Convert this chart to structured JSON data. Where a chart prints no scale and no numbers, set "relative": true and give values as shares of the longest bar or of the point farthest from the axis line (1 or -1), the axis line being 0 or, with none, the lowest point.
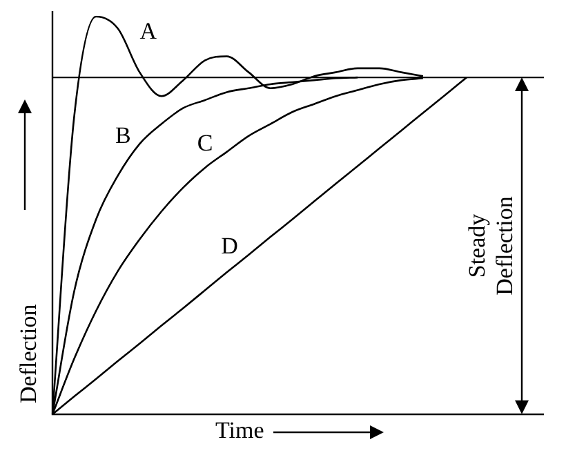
{
  "chart_data": {
    "type": "line",
    "relative": true,
    "xlabel": "Time",
    "ylabel": "Deflection",
    "categories": [
      null,
      null,
      null,
      null,
      null,
      null,
      null,
      null,
      null,
      null,
      null,
      null,
      null,
      null,
      null,
      null,
      null,
      null,
      null,
      null
    ],
    "series": [
      {
        "name": "A",
        "color": "#000000",
        "values": [
          0,
          0.75,
          1.0,
          0.97,
          0.86,
          0.8,
          0.84,
          0.89,
          0.9,
          0.86,
          0.82,
          0.83,
          0.85,
          0.86,
          0.87,
          0.87,
          0.86,
          0.85,
          null,
          null
        ]
      },
      {
        "name": "B",
        "color": "#000000",
        "values": [
          0,
          0.31,
          0.49,
          0.6,
          0.68,
          0.73,
          0.77,
          0.79,
          0.81,
          0.82,
          0.83,
          0.835,
          0.84,
          0.845,
          0.847,
          null,
          null,
          null,
          null,
          null
        ]
      },
      {
        "name": "C",
        "color": "#000000",
        "values": [
          0,
          0.14,
          0.26,
          0.36,
          0.44,
          0.51,
          0.57,
          0.62,
          0.66,
          0.7,
          0.73,
          0.76,
          0.78,
          0.8,
          0.815,
          0.83,
          0.84,
          0.845,
          null,
          null
        ]
      },
      {
        "name": "D",
        "color": "#000000",
        "values": [
          0,
          0.045,
          0.089,
          0.134,
          0.178,
          0.223,
          0.267,
          0.312,
          0.357,
          0.401,
          0.446,
          0.49,
          0.535,
          0.58,
          0.624,
          0.669,
          0.713,
          0.758,
          0.802,
          0.847
        ]
      }
    ],
    "ref_lines": [
      {
        "axis": "y",
        "value": 0.847,
        "color": "#000000"
      }
    ],
    "annotations": [
      "Steady Deflection"
    ],
    "grid": false,
    "legend": false,
    "marker": "none",
    "line_style": "solid"
  }
}
